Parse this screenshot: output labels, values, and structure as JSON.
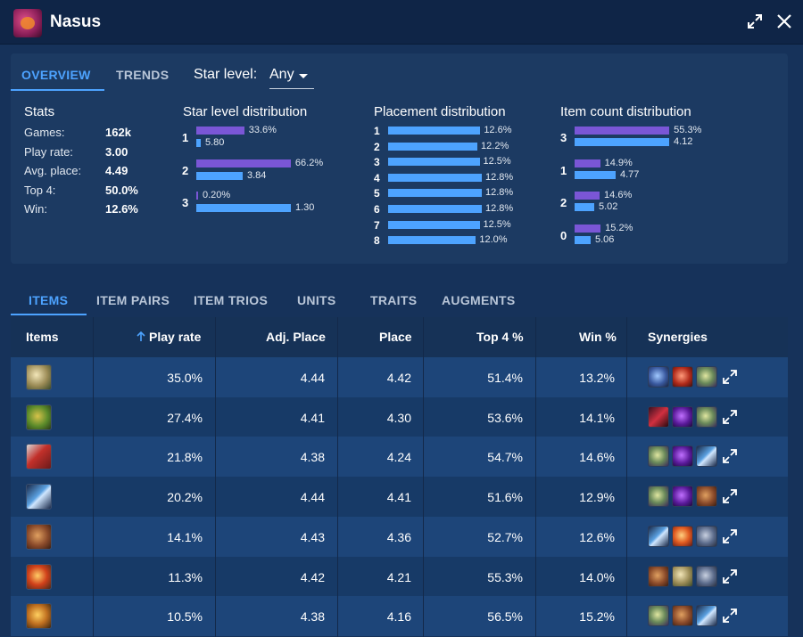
{
  "window": {
    "title": "Nasus",
    "icons": [
      "champion-portrait-icon",
      "expand-icon",
      "close-icon"
    ]
  },
  "overview": {
    "tabs": [
      {
        "label": "OVERVIEW",
        "active": true
      },
      {
        "label": "TRENDS",
        "active": false
      }
    ],
    "star_level": {
      "label": "Star level:",
      "value": "Any"
    },
    "stats": {
      "title": "Stats",
      "rows": [
        {
          "label": "Games:",
          "value": "162k"
        },
        {
          "label": "Play rate:",
          "value": "3.00"
        },
        {
          "label": "Avg. place:",
          "value": "4.49"
        },
        {
          "label": "Top 4:",
          "value": "50.0%"
        },
        {
          "label": "Win:",
          "value": "12.6%"
        }
      ]
    },
    "star_distribution": {
      "title": "Star level distribution",
      "rows": [
        {
          "key": "1",
          "pct": "33.6%",
          "pct_value": 33.6,
          "avg": "5.80",
          "avg_value": 5.8
        },
        {
          "key": "2",
          "pct": "66.2%",
          "pct_value": 66.2,
          "avg": "3.84",
          "avg_value": 3.84
        },
        {
          "key": "3",
          "pct": "0.20%",
          "pct_value": 0.2,
          "avg": "1.30",
          "avg_value": 1.3
        }
      ]
    },
    "placement_distribution": {
      "title": "Placement distribution",
      "rows": [
        {
          "key": "1",
          "pct": "12.6%",
          "value": 12.6
        },
        {
          "key": "2",
          "pct": "12.2%",
          "value": 12.2
        },
        {
          "key": "3",
          "pct": "12.5%",
          "value": 12.5
        },
        {
          "key": "4",
          "pct": "12.8%",
          "value": 12.8
        },
        {
          "key": "5",
          "pct": "12.8%",
          "value": 12.8
        },
        {
          "key": "6",
          "pct": "12.8%",
          "value": 12.8
        },
        {
          "key": "7",
          "pct": "12.5%",
          "value": 12.5
        },
        {
          "key": "8",
          "pct": "12.0%",
          "value": 12.0
        }
      ]
    },
    "item_count_distribution": {
      "title": "Item count distribution",
      "rows": [
        {
          "key": "3",
          "pct": "55.3%",
          "pct_value": 55.3,
          "avg": "4.12",
          "avg_value": 4.12
        },
        {
          "key": "1",
          "pct": "14.9%",
          "pct_value": 14.9,
          "avg": "4.77",
          "avg_value": 4.77
        },
        {
          "key": "2",
          "pct": "14.6%",
          "pct_value": 14.6,
          "avg": "5.02",
          "avg_value": 5.02
        },
        {
          "key": "0",
          "pct": "15.2%",
          "pct_value": 15.2,
          "avg": "5.06",
          "avg_value": 5.06
        }
      ]
    }
  },
  "main_tabs": [
    {
      "label": "ITEMS",
      "active": true
    },
    {
      "label": "ITEM PAIRS",
      "active": false
    },
    {
      "label": "ITEM TRIOS",
      "active": false
    },
    {
      "label": "UNITS",
      "active": false
    },
    {
      "label": "TRAITS",
      "active": false
    },
    {
      "label": "AUGMENTS",
      "active": false
    }
  ],
  "table": {
    "headers": [
      "Items",
      "Play rate",
      "Adj. Place",
      "Place",
      "Top 4 %",
      "Win %",
      "Synergies"
    ],
    "sort_indicator": "sort-ascending-arrow-icon",
    "rows": [
      {
        "item_icon": "chalice-item-icon",
        "play_rate": "35.0%",
        "adj_place": "4.44",
        "place": "4.42",
        "top4": "51.4%",
        "win": "13.2%",
        "synergies": [
          "blue-shroud-item-icon",
          "red-gauntlet-item-icon",
          "crown-item-icon"
        ]
      },
      {
        "item_icon": "green-gauntlet-item-icon",
        "play_rate": "27.4%",
        "adj_place": "4.41",
        "place": "4.30",
        "top4": "53.6%",
        "win": "14.1%",
        "synergies": [
          "red-blade-item-icon",
          "purple-orb-item-icon",
          "crown-item-icon"
        ]
      },
      {
        "item_icon": "red-bow-item-icon",
        "play_rate": "21.8%",
        "adj_place": "4.38",
        "place": "4.24",
        "top4": "54.7%",
        "win": "14.6%",
        "synergies": [
          "crown-item-icon",
          "purple-orb-item-icon",
          "blue-blade-item-icon"
        ]
      },
      {
        "item_icon": "blue-blade-item-icon",
        "play_rate": "20.2%",
        "adj_place": "4.44",
        "place": "4.41",
        "top4": "51.6%",
        "win": "12.9%",
        "synergies": [
          "crown-item-icon",
          "purple-orb-item-icon",
          "bronze-armor-item-icon"
        ]
      },
      {
        "item_icon": "bronze-armor-item-icon",
        "play_rate": "14.1%",
        "adj_place": "4.43",
        "place": "4.36",
        "top4": "52.7%",
        "win": "12.6%",
        "synergies": [
          "blue-blade-item-icon",
          "orange-orb-item-icon",
          "steel-mask-item-icon"
        ]
      },
      {
        "item_icon": "red-fire-orb-item-icon",
        "play_rate": "11.3%",
        "adj_place": "4.42",
        "place": "4.21",
        "top4": "55.3%",
        "win": "14.0%",
        "synergies": [
          "bronze-armor-item-icon",
          "chalice-item-icon",
          "steel-mask-item-icon"
        ]
      },
      {
        "item_icon": "golden-claw-item-icon",
        "play_rate": "10.5%",
        "adj_place": "4.38",
        "place": "4.16",
        "top4": "56.5%",
        "win": "15.2%",
        "synergies": [
          "crown-item-icon",
          "bronze-armor-item-icon",
          "blue-blade-item-icon"
        ]
      }
    ]
  },
  "colors": {
    "accent": "#4da3ff",
    "purple_bar": "#7a56d6",
    "blue_bar": "#4da3ff",
    "background": "#16325a",
    "row_odd": "#1d4579",
    "row_even": "#173a67"
  }
}
